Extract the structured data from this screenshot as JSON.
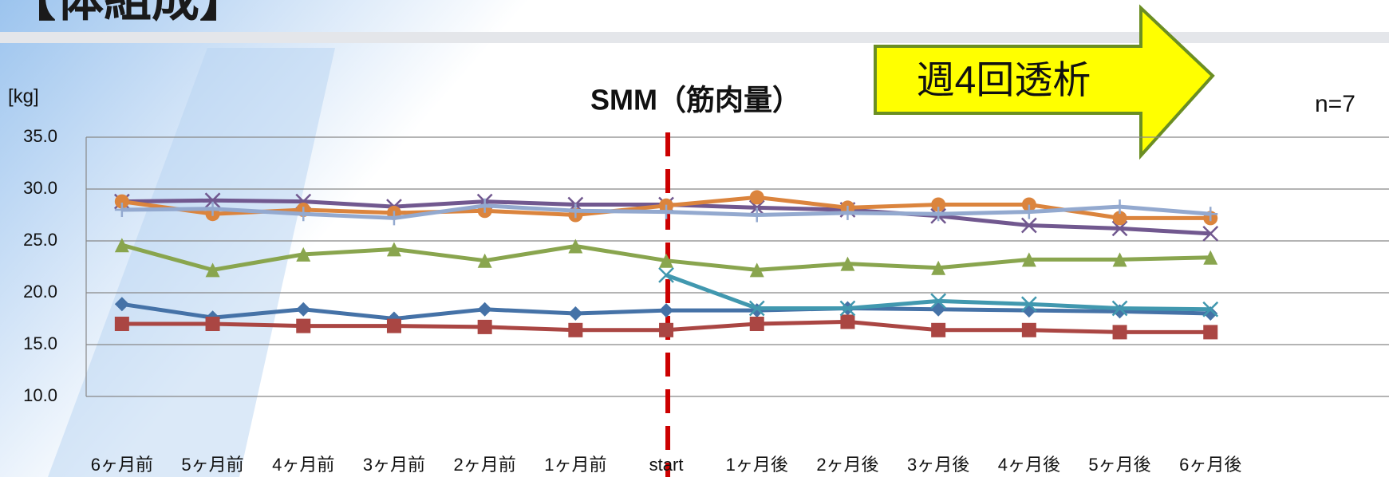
{
  "header": "【体組成】",
  "chart_data": {
    "type": "line",
    "title": "SMM（筋肉量）",
    "y_label": "[kg]",
    "annotation": "n=7",
    "arrow_label": "週4回透析",
    "categories": [
      "6ヶ月前",
      "5ヶ月前",
      "4ヶ月前",
      "3ヶ月前",
      "2ヶ月前",
      "1ヶ月前",
      "start",
      "1ヶ月後",
      "2ヶ月後",
      "3ヶ月後",
      "4ヶ月後",
      "5ヶ月後",
      "6ヶ月後"
    ],
    "ylim": [
      10,
      35
    ],
    "yticks": [
      {
        "value": 10,
        "label": "10.0"
      },
      {
        "value": 15,
        "label": "15.0"
      },
      {
        "value": 20,
        "label": "20.0"
      },
      {
        "value": 25,
        "label": "25.0"
      },
      {
        "value": 30,
        "label": "30.0"
      },
      {
        "value": 35,
        "label": "35.0"
      }
    ],
    "grid": true,
    "series": [
      {
        "color": "#4572a7",
        "marker": "diamond",
        "values": [
          18.9,
          17.6,
          18.4,
          17.5,
          18.4,
          18.0,
          18.3,
          18.3,
          18.5,
          18.4,
          18.3,
          18.2,
          18.0
        ]
      },
      {
        "color": "#aa4643",
        "marker": "square",
        "values": [
          17.0,
          17.0,
          16.8,
          16.8,
          16.7,
          16.4,
          16.4,
          17.0,
          17.2,
          16.4,
          16.4,
          16.2,
          16.2
        ]
      },
      {
        "color": "#89a54e",
        "marker": "triangle",
        "values": [
          24.6,
          22.2,
          23.7,
          24.2,
          23.1,
          24.5,
          23.1,
          22.2,
          22.8,
          22.4,
          23.2,
          23.2,
          23.4
        ]
      },
      {
        "color": "#71588f",
        "marker": "x",
        "values": [
          28.8,
          28.9,
          28.8,
          28.3,
          28.8,
          28.5,
          28.5,
          28.2,
          28.0,
          27.4,
          26.5,
          26.2,
          25.7
        ]
      },
      {
        "color": "#4198af",
        "marker": "x",
        "values": [
          null,
          null,
          null,
          null,
          null,
          null,
          21.7,
          18.5,
          18.5,
          19.2,
          18.9,
          18.5,
          18.4
        ]
      },
      {
        "color": "#db843d",
        "marker": "circle",
        "values": [
          28.8,
          27.6,
          28.0,
          27.7,
          27.9,
          27.5,
          28.4,
          29.2,
          28.2,
          28.5,
          28.5,
          27.2,
          27.2
        ]
      },
      {
        "color": "#93a9cf",
        "marker": "plus",
        "values": [
          28.0,
          28.1,
          27.6,
          27.2,
          28.4,
          27.9,
          27.8,
          27.5,
          27.7,
          27.6,
          27.8,
          28.3,
          27.6
        ]
      }
    ]
  }
}
